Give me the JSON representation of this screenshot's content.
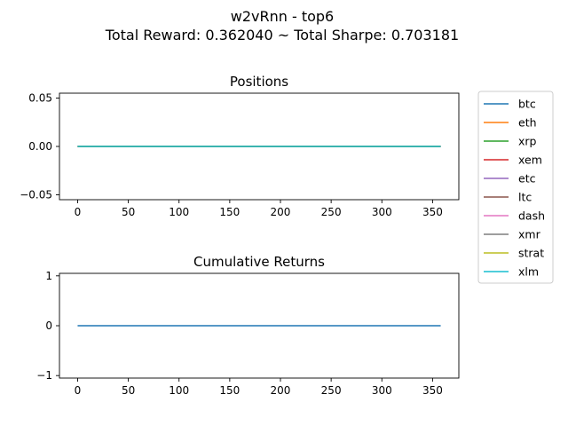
{
  "figure": {
    "suptitle_line1": "w2vRnn - top6",
    "suptitle_line2": "Total Reward: 0.362040 ~ Total Sharpe: 0.703181"
  },
  "legend": {
    "placement": "right of top plot",
    "entries": [
      {
        "name": "btc",
        "color": "#1f77b4"
      },
      {
        "name": "eth",
        "color": "#ff7f0e"
      },
      {
        "name": "xrp",
        "color": "#2ca02c"
      },
      {
        "name": "xem",
        "color": "#d62728"
      },
      {
        "name": "etc",
        "color": "#9467bd"
      },
      {
        "name": "ltc",
        "color": "#8c564b"
      },
      {
        "name": "dash",
        "color": "#e377c2"
      },
      {
        "name": "xmr",
        "color": "#7f7f7f"
      },
      {
        "name": "strat",
        "color": "#bcbd22"
      },
      {
        "name": "xlm",
        "color": "#17becf"
      }
    ]
  },
  "chart_data": [
    {
      "type": "line",
      "title": "Positions",
      "xlabel": "",
      "ylabel": "",
      "xlim": [
        -17.9,
        375.9
      ],
      "ylim": [
        -0.055,
        0.055
      ],
      "xticks": [
        0,
        50,
        100,
        150,
        200,
        250,
        300,
        350
      ],
      "xtick_labels": [
        "0",
        "50",
        "100",
        "150",
        "200",
        "250",
        "300",
        "350"
      ],
      "yticks": [
        -0.05,
        0,
        0.05
      ],
      "ytick_labels": [
        "−0.05",
        "0.00",
        "0.05"
      ],
      "grid": false,
      "series": [
        {
          "name": "btc",
          "color": "#1f77b4",
          "x": [
            0,
            358
          ],
          "y": [
            0,
            0
          ]
        },
        {
          "name": "eth",
          "color": "#ff7f0e",
          "x": [
            0,
            358
          ],
          "y": [
            0,
            0
          ]
        },
        {
          "name": "xrp",
          "color": "#2ca02c",
          "x": [
            0,
            358
          ],
          "y": [
            0,
            0
          ]
        },
        {
          "name": "xem",
          "color": "#d62728",
          "x": [
            0,
            358
          ],
          "y": [
            0,
            0
          ]
        },
        {
          "name": "etc",
          "color": "#9467bd",
          "x": [
            0,
            358
          ],
          "y": [
            0,
            0
          ]
        },
        {
          "name": "ltc",
          "color": "#8c564b",
          "x": [
            0,
            358
          ],
          "y": [
            0,
            0
          ]
        },
        {
          "name": "dash",
          "color": "#e377c2",
          "x": [
            0,
            358
          ],
          "y": [
            0,
            0
          ]
        },
        {
          "name": "xmr",
          "color": "#7f7f7f",
          "x": [
            0,
            358
          ],
          "y": [
            0,
            0
          ]
        },
        {
          "name": "strat",
          "color": "#bcbd22",
          "x": [
            0,
            358
          ],
          "y": [
            0,
            0
          ]
        },
        {
          "name": "xlm",
          "color": "#17becf",
          "x": [
            0,
            358
          ],
          "y": [
            0,
            0
          ]
        }
      ]
    },
    {
      "type": "line",
      "title": "Cumulative Returns",
      "xlabel": "",
      "ylabel": "",
      "xlim": [
        -17.9,
        375.9
      ],
      "ylim": [
        -1.05,
        1.05
      ],
      "xticks": [
        0,
        50,
        100,
        150,
        200,
        250,
        300,
        350
      ],
      "xtick_labels": [
        "0",
        "50",
        "100",
        "150",
        "200",
        "250",
        "300",
        "350"
      ],
      "yticks": [
        -1,
        0,
        1
      ],
      "ytick_labels": [
        "−1",
        "0",
        "1"
      ],
      "grid": false,
      "series": [
        {
          "color": "#1f77b4",
          "x": [
            0,
            358
          ],
          "y": [
            0,
            0
          ]
        }
      ]
    }
  ]
}
